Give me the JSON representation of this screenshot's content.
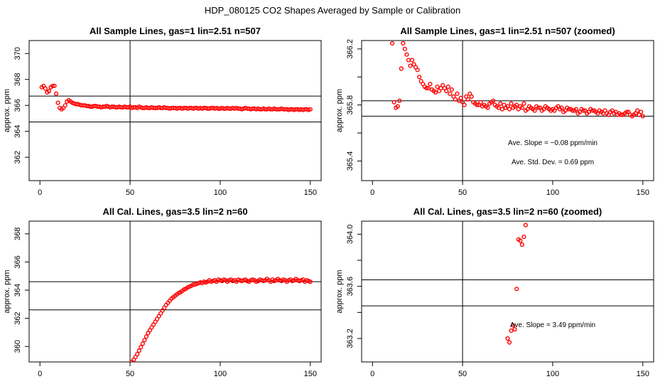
{
  "figure": {
    "title": "HDP_080125  CO2 Shapes Averaged by Sample or Calibration"
  },
  "colors": {
    "points": "#ff0000",
    "lines": "#000000",
    "frame": "#000000"
  },
  "chart_data": [
    {
      "type": "scatter",
      "title": "All Sample Lines, gas=1 lin=2.51 n=507",
      "ylabel": "approx. ppm",
      "xlabel": "",
      "xlim": [
        -6,
        156
      ],
      "ylim": [
        360.2,
        371.0
      ],
      "xticks": [
        0,
        50,
        100,
        150
      ],
      "yticks": [
        362,
        364,
        366,
        368,
        370
      ],
      "vline": 50,
      "hlines": [
        364.72,
        366.72
      ],
      "annotations": [],
      "series": [
        {
          "x": [
            1,
            2,
            3,
            4,
            5,
            6,
            7,
            8,
            9,
            10,
            11,
            12,
            13,
            14,
            15,
            16,
            17,
            18,
            19,
            20,
            21,
            22,
            23,
            24,
            25,
            26,
            27,
            28,
            29,
            30,
            31,
            32,
            33,
            34,
            35,
            36,
            37,
            38,
            39,
            40,
            41,
            42,
            43,
            44,
            45,
            46,
            47,
            48,
            49,
            50,
            51,
            52,
            53,
            54,
            55,
            56,
            57,
            58,
            59,
            60,
            61,
            62,
            63,
            64,
            65,
            66,
            67,
            68,
            69,
            70,
            71,
            72,
            73,
            74,
            75,
            76,
            77,
            78,
            79,
            80,
            81,
            82,
            83,
            84,
            85,
            86,
            87,
            88,
            89,
            90,
            91,
            92,
            93,
            94,
            95,
            96,
            97,
            98,
            99,
            100,
            101,
            102,
            103,
            104,
            105,
            106,
            107,
            108,
            109,
            110,
            111,
            112,
            113,
            114,
            115,
            116,
            117,
            118,
            119,
            120,
            121,
            122,
            123,
            124,
            125,
            126,
            127,
            128,
            129,
            130,
            131,
            132,
            133,
            134,
            135,
            136,
            137,
            138,
            139,
            140,
            141,
            142,
            143,
            144,
            145,
            146,
            147,
            148,
            149,
            150
          ],
          "y": [
            367.4,
            367.5,
            367.3,
            367.0,
            367.1,
            367.4,
            367.5,
            367.5,
            366.9,
            366.2,
            365.8,
            365.7,
            365.8,
            366.0,
            366.3,
            366.4,
            366.3,
            366.2,
            366.15,
            366.1,
            366.1,
            366.05,
            366.0,
            366.0,
            366.0,
            365.95,
            365.95,
            365.9,
            365.9,
            365.95,
            365.95,
            365.9,
            365.9,
            365.85,
            365.9,
            365.9,
            365.95,
            365.9,
            365.85,
            365.9,
            365.9,
            365.85,
            365.85,
            365.9,
            365.85,
            365.85,
            365.9,
            365.85,
            365.85,
            365.9,
            365.8,
            365.85,
            365.85,
            365.8,
            365.9,
            365.85,
            365.8,
            365.8,
            365.85,
            365.8,
            365.8,
            365.85,
            365.8,
            365.8,
            365.8,
            365.85,
            365.8,
            365.8,
            365.85,
            365.8,
            365.8,
            365.75,
            365.8,
            365.8,
            365.8,
            365.75,
            365.8,
            365.8,
            365.75,
            365.8,
            365.8,
            365.75,
            365.8,
            365.8,
            365.75,
            365.8,
            365.8,
            365.75,
            365.8,
            365.75,
            365.8,
            365.8,
            365.75,
            365.75,
            365.8,
            365.8,
            365.75,
            365.8,
            365.75,
            365.75,
            365.8,
            365.75,
            365.75,
            365.8,
            365.75,
            365.75,
            365.8,
            365.75,
            365.8,
            365.75,
            365.75,
            365.7,
            365.75,
            365.8,
            365.75,
            365.75,
            365.7,
            365.75,
            365.75,
            365.7,
            365.75,
            365.7,
            365.7,
            365.75,
            365.7,
            365.7,
            365.75,
            365.7,
            365.7,
            365.75,
            365.7,
            365.7,
            365.7,
            365.75,
            365.7,
            365.7,
            365.7,
            365.65,
            365.7,
            365.7,
            365.65,
            365.7,
            365.7,
            365.65,
            365.7,
            365.65,
            365.7,
            365.7,
            365.65,
            365.7
          ]
        }
      ]
    },
    {
      "type": "scatter",
      "title": "All Sample Lines, gas=1 lin=2.51 n=507 (zoomed)",
      "ylabel": "approx. ppm",
      "xlabel": "",
      "xlim": [
        -6,
        156
      ],
      "ylim": [
        365.26,
        366.26
      ],
      "xticks": [
        0,
        50,
        100,
        150
      ],
      "yticks": [
        365.4,
        365.6,
        365.8,
        366.0,
        366.2
      ],
      "ytick_labels": [
        "365.4",
        "",
        "365.8",
        "",
        "366.2"
      ],
      "vline": 50,
      "hlines": [
        365.83,
        365.72
      ],
      "annotations": [
        "Ave. Slope =  −0.08  ppm/min",
        "Ave. Std. Dev. =  0.69  ppm"
      ],
      "series": [
        {
          "x": [
            11,
            12,
            13,
            14,
            15,
            16,
            17,
            18,
            19,
            20,
            21,
            22,
            23,
            24,
            25,
            26,
            27,
            28,
            29,
            30,
            31,
            32,
            33,
            34,
            35,
            36,
            37,
            38,
            39,
            40,
            41,
            42,
            43,
            44,
            45,
            46,
            47,
            48,
            49,
            50,
            51,
            52,
            53,
            54,
            55,
            56,
            57,
            58,
            59,
            60,
            61,
            62,
            63,
            64,
            65,
            66,
            67,
            68,
            69,
            70,
            71,
            72,
            73,
            74,
            75,
            76,
            77,
            78,
            79,
            80,
            81,
            82,
            83,
            84,
            85,
            86,
            87,
            88,
            89,
            90,
            91,
            92,
            93,
            94,
            95,
            96,
            97,
            98,
            99,
            100,
            101,
            102,
            103,
            104,
            105,
            106,
            107,
            108,
            109,
            110,
            111,
            112,
            113,
            114,
            115,
            116,
            117,
            118,
            119,
            120,
            121,
            122,
            123,
            124,
            125,
            126,
            127,
            128,
            129,
            130,
            131,
            132,
            133,
            134,
            135,
            136,
            137,
            138,
            139,
            140,
            141,
            142,
            143,
            144,
            145,
            146,
            147,
            148,
            149,
            150
          ],
          "y": [
            366.24,
            365.82,
            365.78,
            365.79,
            365.83,
            366.06,
            366.24,
            366.2,
            366.16,
            366.12,
            366.08,
            366.12,
            366.09,
            366.07,
            366.05,
            366.0,
            365.97,
            365.95,
            365.93,
            365.92,
            365.92,
            365.95,
            365.91,
            365.9,
            365.89,
            365.93,
            365.9,
            365.92,
            365.94,
            365.92,
            365.9,
            365.93,
            365.88,
            365.91,
            365.86,
            365.84,
            365.88,
            365.83,
            365.85,
            365.82,
            365.8,
            365.86,
            365.84,
            365.88,
            365.86,
            365.82,
            365.81,
            365.8,
            365.8,
            365.82,
            365.79,
            365.8,
            365.79,
            365.78,
            365.81,
            365.82,
            365.83,
            365.8,
            365.79,
            365.78,
            365.81,
            365.77,
            365.8,
            365.78,
            365.79,
            365.77,
            365.81,
            365.78,
            365.79,
            365.8,
            365.77,
            365.79,
            365.78,
            365.81,
            365.76,
            365.77,
            365.79,
            365.78,
            365.77,
            365.76,
            365.79,
            365.78,
            365.78,
            365.76,
            365.77,
            365.79,
            365.78,
            365.77,
            365.76,
            365.77,
            365.76,
            365.78,
            365.79,
            365.77,
            365.78,
            365.75,
            365.76,
            365.78,
            365.77,
            365.77,
            365.76,
            365.76,
            365.77,
            365.74,
            365.75,
            365.77,
            365.76,
            365.76,
            365.74,
            365.75,
            365.77,
            365.76,
            365.76,
            365.75,
            365.74,
            365.76,
            365.75,
            365.74,
            365.76,
            365.74,
            365.73,
            365.75,
            365.76,
            365.74,
            365.75,
            365.73,
            365.74,
            365.73,
            365.73,
            365.74,
            365.75,
            365.75,
            365.73,
            365.72,
            365.73,
            365.74,
            365.76,
            365.73,
            365.75,
            365.72
          ]
        }
      ]
    },
    {
      "type": "scatter",
      "title": "All Cal. Lines, gas=3.5 lin=2 n=60",
      "ylabel": "approx. ppm",
      "xlabel": "",
      "xlim": [
        -6,
        156
      ],
      "ylim": [
        358.9,
        368.9
      ],
      "xticks": [
        0,
        50,
        100,
        150
      ],
      "yticks": [
        360,
        362,
        364,
        366,
        368
      ],
      "ytick_labels": [
        "360",
        "362",
        "364",
        "366",
        "368"
      ],
      "vline": 50,
      "hlines": [
        364.6,
        362.6
      ],
      "annotations": [],
      "series": [
        {
          "x": [
            51,
            52,
            53,
            54,
            55,
            56,
            57,
            58,
            59,
            60,
            61,
            62,
            63,
            64,
            65,
            66,
            67,
            68,
            69,
            70,
            71,
            72,
            73,
            74,
            75,
            76,
            77,
            78,
            79,
            80,
            81,
            82,
            83,
            84,
            85,
            86,
            87,
            88,
            89,
            90,
            91,
            92,
            93,
            94,
            95,
            96,
            97,
            98,
            99,
            100,
            101,
            102,
            103,
            104,
            105,
            106,
            107,
            108,
            109,
            110,
            111,
            112,
            113,
            114,
            115,
            116,
            117,
            118,
            119,
            120,
            121,
            122,
            123,
            124,
            125,
            126,
            127,
            128,
            129,
            130,
            131,
            132,
            133,
            134,
            135,
            136,
            137,
            138,
            139,
            140,
            141,
            142,
            143,
            144,
            145,
            146,
            147,
            148,
            149,
            150
          ],
          "y": [
            358.9,
            359.05,
            359.25,
            359.45,
            359.7,
            359.95,
            360.2,
            360.45,
            360.7,
            360.95,
            361.15,
            361.35,
            361.55,
            361.75,
            361.95,
            362.15,
            362.35,
            362.55,
            362.75,
            362.95,
            363.1,
            363.25,
            363.4,
            363.5,
            363.6,
            363.7,
            363.8,
            363.85,
            363.95,
            364.05,
            364.1,
            364.2,
            364.25,
            364.3,
            364.4,
            364.4,
            364.45,
            364.5,
            364.55,
            364.5,
            364.6,
            364.55,
            364.6,
            364.7,
            364.6,
            364.65,
            364.7,
            364.6,
            364.75,
            364.7,
            364.65,
            364.75,
            364.7,
            364.6,
            364.7,
            364.75,
            364.65,
            364.7,
            364.6,
            364.75,
            364.7,
            364.65,
            364.7,
            364.75,
            364.65,
            364.6,
            364.7,
            364.75,
            364.7,
            364.6,
            364.65,
            364.75,
            364.7,
            364.65,
            364.7,
            364.8,
            364.7,
            364.6,
            364.75,
            364.65,
            364.7,
            364.8,
            364.7,
            364.65,
            364.75,
            364.7,
            364.6,
            364.7,
            364.75,
            364.65,
            364.7,
            364.8,
            364.7,
            364.65,
            364.7,
            364.75,
            364.6,
            364.7,
            364.65,
            364.6
          ]
        }
      ]
    },
    {
      "type": "scatter",
      "title": "All Cal. Lines, gas=3.5 lin=2 n=60 (zoomed)",
      "ylabel": "approx. ppm",
      "xlabel": "",
      "xlim": [
        -6,
        156
      ],
      "ylim": [
        363.02,
        364.1
      ],
      "xticks": [
        0,
        50,
        100,
        150
      ],
      "yticks": [
        363.2,
        363.4,
        363.6,
        363.8,
        364.0
      ],
      "ytick_labels": [
        "363.2",
        "",
        "363.6",
        "",
        "364.0"
      ],
      "vline": 50,
      "hlines": [
        363.65,
        363.45
      ],
      "annotations": [
        "Ave. Slope =  3.49  ppm/min"
      ],
      "series": [
        {
          "x": [
            75,
            76,
            77,
            78,
            79,
            80,
            81,
            82,
            83,
            84,
            85
          ],
          "y": [
            363.2,
            363.17,
            363.26,
            363.3,
            363.27,
            363.58,
            363.96,
            363.95,
            363.92,
            363.98,
            364.07
          ]
        }
      ]
    }
  ]
}
